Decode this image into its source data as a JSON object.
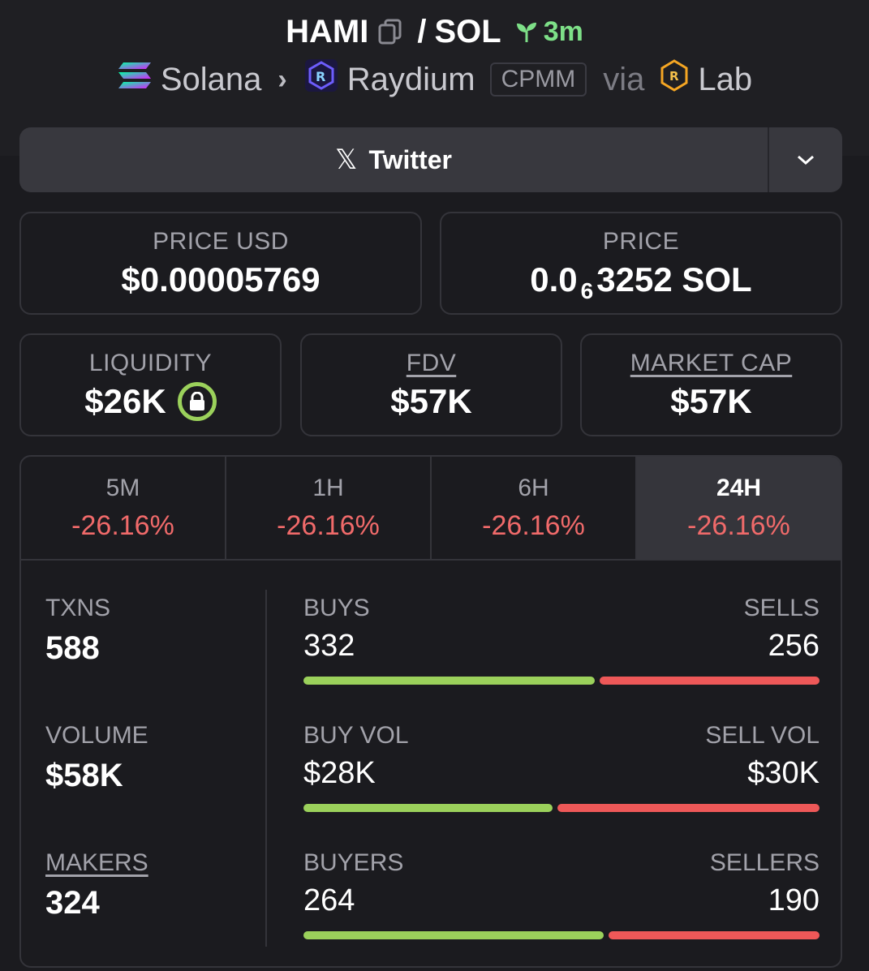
{
  "header": {
    "token": "HAMI",
    "separator": "/",
    "quote": "SOL",
    "age": "3m",
    "chain": "Solana",
    "dex": "Raydium",
    "pool_type": "CPMM",
    "via": "via",
    "launchpad": "Lab"
  },
  "twitter": {
    "label": "Twitter"
  },
  "price_usd": {
    "label": "PRICE USD",
    "value": "$0.00005769"
  },
  "price": {
    "label": "PRICE",
    "prefix": "0.0",
    "zeros": "6",
    "suffix": "3252 SOL"
  },
  "liquidity": {
    "label": "LIQUIDITY",
    "value": "$26K"
  },
  "fdv": {
    "label": "FDV",
    "value": "$57K"
  },
  "market_cap": {
    "label": "MARKET CAP",
    "value": "$57K"
  },
  "tabs": [
    {
      "label": "5M",
      "value": "-26.16%"
    },
    {
      "label": "1H",
      "value": "-26.16%"
    },
    {
      "label": "6H",
      "value": "-26.16%"
    },
    {
      "label": "24H",
      "value": "-26.16%",
      "active": true
    }
  ],
  "stats": {
    "txns": {
      "label": "TXNS",
      "value": "588"
    },
    "volume": {
      "label": "VOLUME",
      "value": "$58K"
    },
    "makers": {
      "label": "MAKERS",
      "value": "324"
    }
  },
  "pairs": {
    "txns": {
      "left_label": "BUYS",
      "left_value": "332",
      "right_label": "SELLS",
      "right_value": "256",
      "buy_fraction": 0.565
    },
    "volume": {
      "left_label": "BUY VOL",
      "left_value": "$28K",
      "right_label": "SELL VOL",
      "right_value": "$30K",
      "buy_fraction": 0.483
    },
    "makers": {
      "left_label": "BUYERS",
      "left_value": "264",
      "right_label": "SELLERS",
      "right_value": "190",
      "buy_fraction": 0.582
    }
  },
  "colors": {
    "positive": "#9bd15b",
    "negative": "#ee5858",
    "age": "#7ee088"
  }
}
